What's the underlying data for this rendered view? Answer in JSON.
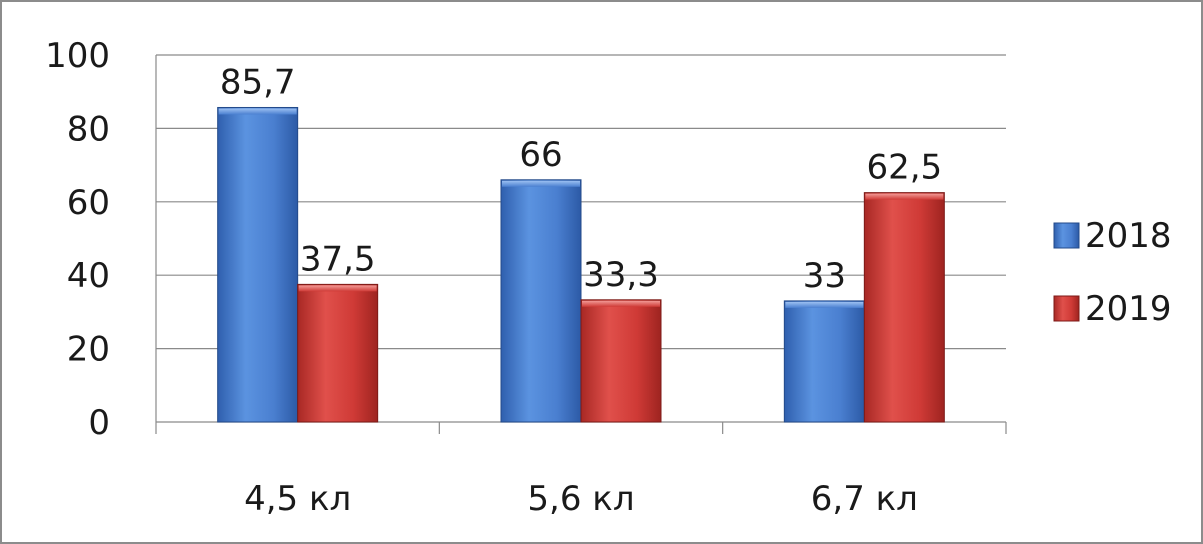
{
  "chart_data": {
    "type": "bar",
    "categories": [
      "4,5 кл",
      "5,6 кл",
      "6,7 кл"
    ],
    "series": [
      {
        "name": "2018",
        "values": [
          85.7,
          66,
          33
        ],
        "labels": [
          "85,7",
          "66",
          "33"
        ],
        "color": "#4a7fd0"
      },
      {
        "name": "2019",
        "values": [
          37.5,
          33.3,
          62.5
        ],
        "labels": [
          "37,5",
          "33,3",
          "62,5"
        ],
        "color": "#cf3a36"
      }
    ],
    "ylim": [
      0,
      100
    ],
    "yticks": [
      "0",
      "20",
      "40",
      "60",
      "80",
      "100"
    ],
    "title": "",
    "xlabel": "",
    "ylabel": "",
    "grid": true,
    "legend_position": "right"
  }
}
